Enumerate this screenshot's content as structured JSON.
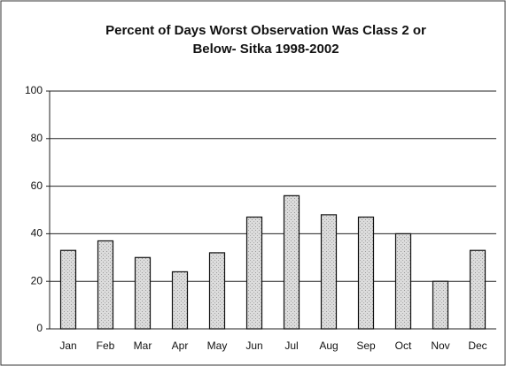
{
  "chart_data": {
    "type": "bar",
    "title": [
      "Percent of Days Worst Observation Was Class 2 or",
      "Below- Sitka 1998-2002"
    ],
    "categories": [
      "Jan",
      "Feb",
      "Mar",
      "Apr",
      "May",
      "Jun",
      "Jul",
      "Aug",
      "Sep",
      "Oct",
      "Nov",
      "Dec"
    ],
    "values": [
      33,
      37,
      30,
      24,
      32,
      47,
      56,
      48,
      47,
      40,
      20,
      33
    ],
    "color": "#d6d6d6",
    "ylim": [
      0,
      100
    ],
    "yticks": [
      0,
      20,
      40,
      60,
      80,
      100
    ],
    "grid": true
  }
}
